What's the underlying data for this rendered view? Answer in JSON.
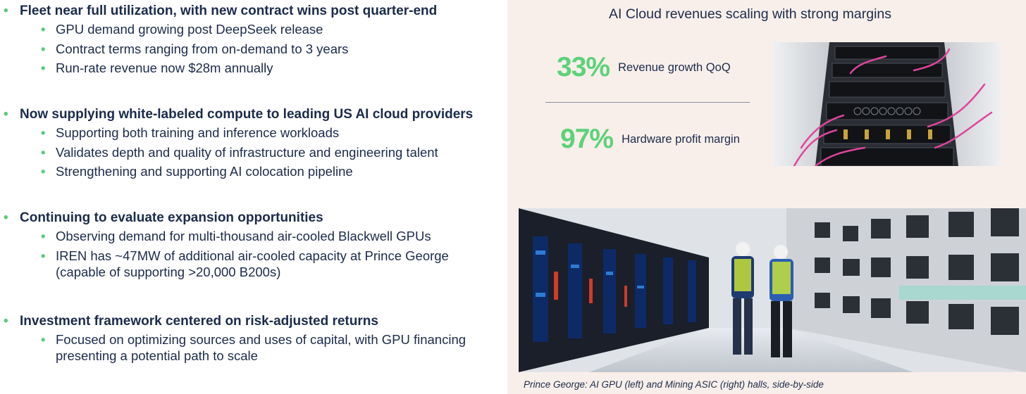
{
  "sections": [
    {
      "heading": "Fleet near full utilization, with new contract wins post quarter-end",
      "items": [
        "GPU demand growing post DeepSeek release",
        "Contract terms ranging from on-demand to 3 years",
        "Run-rate revenue now $28m annually"
      ]
    },
    {
      "heading": "Now supplying white-labeled compute to leading US AI cloud providers",
      "items": [
        "Supporting both training and inference workloads",
        "Validates depth and quality of infrastructure and engineering talent",
        "Strengthening and supporting AI colocation pipeline"
      ]
    },
    {
      "heading": "Continuing to evaluate expansion opportunities",
      "items": [
        "Observing demand for multi-thousand air-cooled Blackwell GPUs",
        "IREN has ~47MW of additional air-cooled capacity at Prince George",
        "(capable of supporting >20,000 B200s)"
      ]
    },
    {
      "heading": "Investment framework centered on risk-adjusted returns",
      "items": [
        "Focused on optimizing sources and uses of capital, with GPU financing",
        "presenting a potential path to scale"
      ]
    }
  ],
  "right_panel": {
    "title": "AI Cloud revenues scaling with strong margins",
    "metrics": [
      {
        "value": "33%",
        "label": "Revenue growth QoQ"
      },
      {
        "value": "97%",
        "label": "Hardware profit margin"
      }
    ],
    "caption": "Prince George: AI GPU (left) and Mining ASIC (right) halls, side-by-side"
  },
  "colors": {
    "accent_green": "#5dd27a",
    "navy_text": "#1b2b4b",
    "panel_bg": "#f9efea"
  }
}
